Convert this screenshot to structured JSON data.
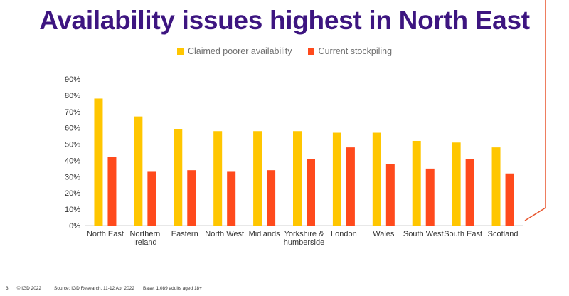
{
  "title": "Availability issues highest in North East",
  "colors": {
    "title": "#3d1580",
    "series1": "#ffc600",
    "series2": "#ff4a1c",
    "accent": "#e8542c"
  },
  "chart_data": {
    "type": "bar",
    "categories": [
      "North East",
      "Northern Ireland",
      "Eastern",
      "North West",
      "Midlands",
      "Yorkshire & humberside",
      "London",
      "Wales",
      "South West",
      "South East",
      "Scotland"
    ],
    "category_lines": [
      [
        "North East"
      ],
      [
        "Northern",
        "Ireland"
      ],
      [
        "Eastern"
      ],
      [
        "North West"
      ],
      [
        "Midlands"
      ],
      [
        "Yorkshire &",
        "humberside"
      ],
      [
        "London"
      ],
      [
        "Wales"
      ],
      [
        "South West"
      ],
      [
        "South East"
      ],
      [
        "Scotland"
      ]
    ],
    "series": [
      {
        "name": "Claimed poorer availability",
        "values": [
          78,
          67,
          59,
          58,
          58,
          58,
          57,
          57,
          52,
          51,
          48
        ]
      },
      {
        "name": "Current stockpiling",
        "values": [
          42,
          33,
          34,
          33,
          34,
          41,
          48,
          38,
          35,
          41,
          32
        ]
      }
    ],
    "ylim": [
      0,
      90
    ],
    "yticks": [
      "0%",
      "10%",
      "20%",
      "30%",
      "40%",
      "50%",
      "60%",
      "70%",
      "80%",
      "90%"
    ],
    "legend_position": "top-center",
    "grid": false
  },
  "footer": {
    "page_number": "3",
    "copyright": "© IGD 2022",
    "source": "Source: IGD Research, 11-12 Apr 2022",
    "base": "Base: 1,089 adults aged 18+"
  }
}
